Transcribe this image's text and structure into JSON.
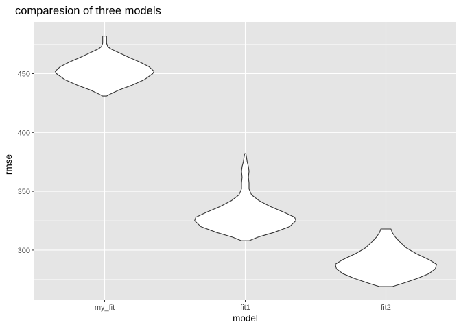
{
  "chart_data": {
    "type": "violin",
    "title": "comparesion of three models",
    "xlabel": "model",
    "ylabel": "rmse",
    "categories": [
      "my_fit",
      "fit1",
      "fit2"
    ],
    "ylim": [
      258,
      494
    ],
    "yticks": [
      300,
      350,
      400,
      450
    ],
    "grid": true,
    "colors": {
      "panel": "#e5e5e5",
      "grid": "#ffffff",
      "violin_fill": "#ffffff",
      "violin_stroke": "#333333",
      "text": "#4d4d4d"
    },
    "series": [
      {
        "category": "my_fit",
        "min": 431,
        "max": 482,
        "profile": [
          [
            431,
            0.03
          ],
          [
            433,
            0.1
          ],
          [
            436,
            0.22
          ],
          [
            440,
            0.42
          ],
          [
            445,
            0.63
          ],
          [
            450,
            0.76
          ],
          [
            452,
            0.78
          ],
          [
            456,
            0.7
          ],
          [
            460,
            0.55
          ],
          [
            464,
            0.38
          ],
          [
            468,
            0.22
          ],
          [
            471,
            0.1
          ],
          [
            473,
            0.05
          ],
          [
            476,
            0.03
          ],
          [
            479,
            0.03
          ],
          [
            482,
            0.03
          ]
        ]
      },
      {
        "category": "fit1",
        "min": 308,
        "max": 382,
        "profile": [
          [
            308,
            0.06
          ],
          [
            311,
            0.2
          ],
          [
            315,
            0.45
          ],
          [
            320,
            0.7
          ],
          [
            325,
            0.8
          ],
          [
            328,
            0.78
          ],
          [
            332,
            0.62
          ],
          [
            337,
            0.4
          ],
          [
            342,
            0.22
          ],
          [
            347,
            0.1
          ],
          [
            352,
            0.06
          ],
          [
            357,
            0.06
          ],
          [
            362,
            0.05
          ],
          [
            367,
            0.06
          ],
          [
            371,
            0.05
          ],
          [
            375,
            0.03
          ],
          [
            379,
            0.02
          ],
          [
            382,
            0.01
          ]
        ]
      },
      {
        "category": "fit2",
        "min": 269,
        "max": 318,
        "profile": [
          [
            269,
            0.1
          ],
          [
            272,
            0.28
          ],
          [
            276,
            0.5
          ],
          [
            280,
            0.68
          ],
          [
            284,
            0.78
          ],
          [
            288,
            0.8
          ],
          [
            292,
            0.68
          ],
          [
            297,
            0.48
          ],
          [
            302,
            0.32
          ],
          [
            307,
            0.22
          ],
          [
            311,
            0.15
          ],
          [
            315,
            0.1
          ],
          [
            318,
            0.08
          ]
        ]
      }
    ]
  }
}
